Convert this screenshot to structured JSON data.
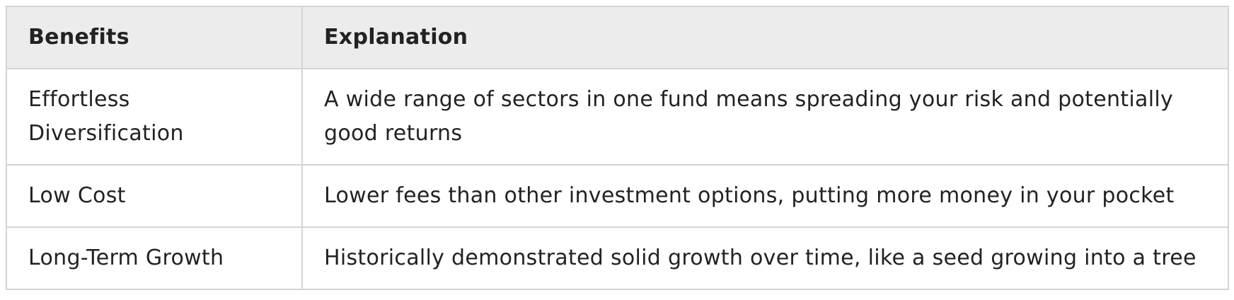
{
  "table": {
    "headers": [
      "Benefits",
      "Explanation"
    ],
    "rows": [
      {
        "benefit": "Effortless Diversification",
        "explanation": "A wide range of sectors in one fund means spreading your risk and potentially good returns"
      },
      {
        "benefit": "Low Cost",
        "explanation": "Lower fees than other investment options, putting more money in your pocket"
      },
      {
        "benefit": "Long-Term Growth",
        "explanation": "Historically demonstrated solid growth over time, like a seed growing into a tree"
      }
    ]
  },
  "colors": {
    "header_background": "#ececec",
    "border": "#d4d4d4",
    "text": "#222222"
  }
}
